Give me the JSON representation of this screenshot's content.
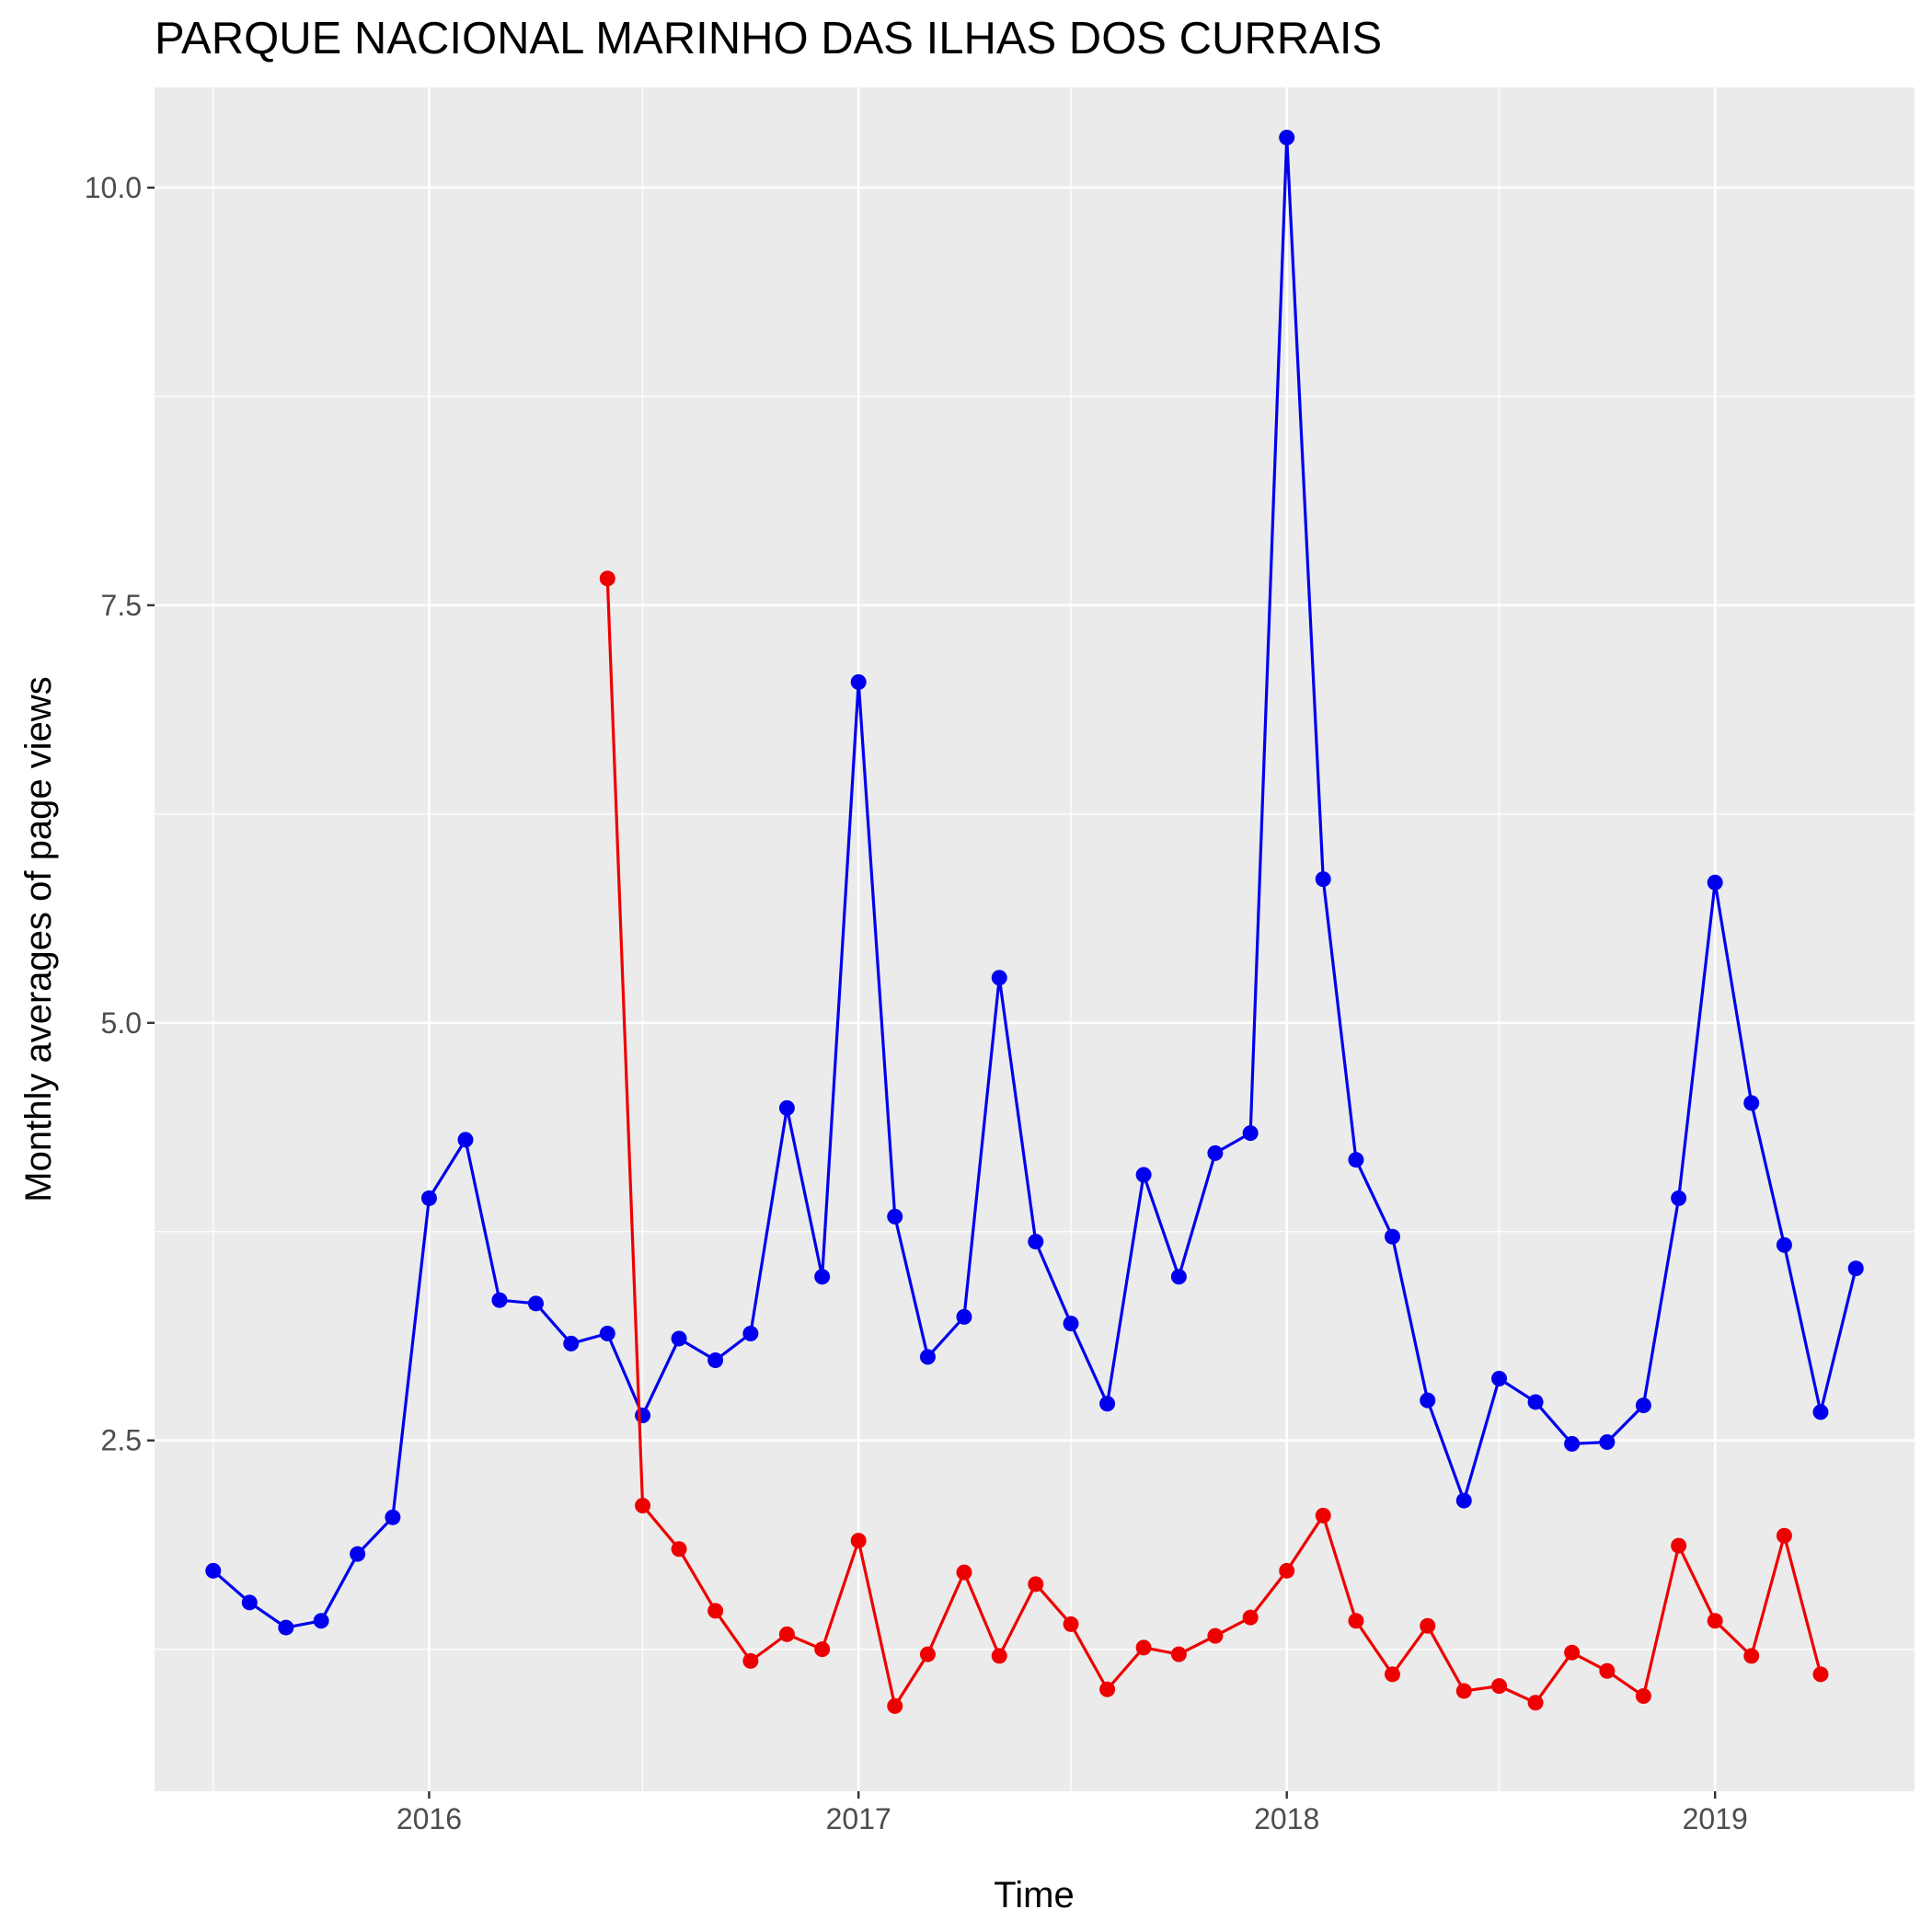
{
  "chart_data": {
    "type": "line",
    "title": "PARQUE NACIONAL MARINHO DAS ILHAS DOS CURRAIS",
    "xlabel": "Time",
    "ylabel": "Monthly averages of page views",
    "x_ticks": [
      "2016",
      "2017",
      "2018",
      "2019"
    ],
    "y_ticks": [
      "2.5",
      "5.0",
      "7.5",
      "10.0"
    ],
    "xlim": [
      "2015-05-12",
      "2019-06-20"
    ],
    "ylim": [
      0.4,
      10.6
    ],
    "grid": true,
    "legend": "none",
    "series": [
      {
        "color": "#0000ee",
        "x": [
          "2015-07",
          "2015-08",
          "2015-09",
          "2015-10",
          "2015-11",
          "2015-12",
          "2016-01",
          "2016-02",
          "2016-03",
          "2016-04",
          "2016-05",
          "2016-06",
          "2016-07",
          "2016-08",
          "2016-09",
          "2016-10",
          "2016-11",
          "2016-12",
          "2017-01",
          "2017-02",
          "2017-03",
          "2017-04",
          "2017-05",
          "2017-06",
          "2017-07",
          "2017-08",
          "2017-09",
          "2017-10",
          "2017-11",
          "2017-12",
          "2018-01",
          "2018-02",
          "2018-03",
          "2018-04",
          "2018-05",
          "2018-06",
          "2018-07",
          "2018-08",
          "2018-09",
          "2018-10",
          "2018-11",
          "2018-12",
          "2019-01",
          "2019-02",
          "2019-03",
          "2019-04",
          "2019-05"
        ],
        "values": [
          1.72,
          1.53,
          1.38,
          1.42,
          1.82,
          2.04,
          3.95,
          4.3,
          3.34,
          3.32,
          3.08,
          3.14,
          2.65,
          3.11,
          2.98,
          3.14,
          4.49,
          3.48,
          7.04,
          3.84,
          3.0,
          3.24,
          5.27,
          3.69,
          3.2,
          2.72,
          4.09,
          3.48,
          4.22,
          4.34,
          10.3,
          5.86,
          4.18,
          3.72,
          2.74,
          2.14,
          2.87,
          2.73,
          2.48,
          2.49,
          2.71,
          3.95,
          5.84,
          4.52,
          3.67,
          2.67,
          3.53
        ]
      },
      {
        "color": "#ee0000",
        "x": [
          "2016-06",
          "2016-07",
          "2016-08",
          "2016-09",
          "2016-10",
          "2016-11",
          "2016-12",
          "2017-01",
          "2017-02",
          "2017-03",
          "2017-04",
          "2017-05",
          "2017-06",
          "2017-07",
          "2017-08",
          "2017-09",
          "2017-10",
          "2017-11",
          "2017-12",
          "2018-01",
          "2018-02",
          "2018-03",
          "2018-04",
          "2018-05",
          "2018-06",
          "2018-07",
          "2018-08",
          "2018-09",
          "2018-10",
          "2018-11",
          "2018-12",
          "2019-01",
          "2019-02",
          "2019-03",
          "2019-04"
        ],
        "values": [
          7.66,
          2.11,
          1.85,
          1.48,
          1.18,
          1.34,
          1.25,
          1.9,
          0.91,
          1.22,
          1.71,
          1.21,
          1.64,
          1.4,
          1.01,
          1.26,
          1.22,
          1.33,
          1.44,
          1.72,
          2.05,
          1.42,
          1.1,
          1.39,
          1.0,
          1.03,
          0.93,
          1.23,
          1.12,
          0.97,
          1.87,
          1.42,
          1.21,
          1.93,
          1.1
        ]
      }
    ]
  }
}
